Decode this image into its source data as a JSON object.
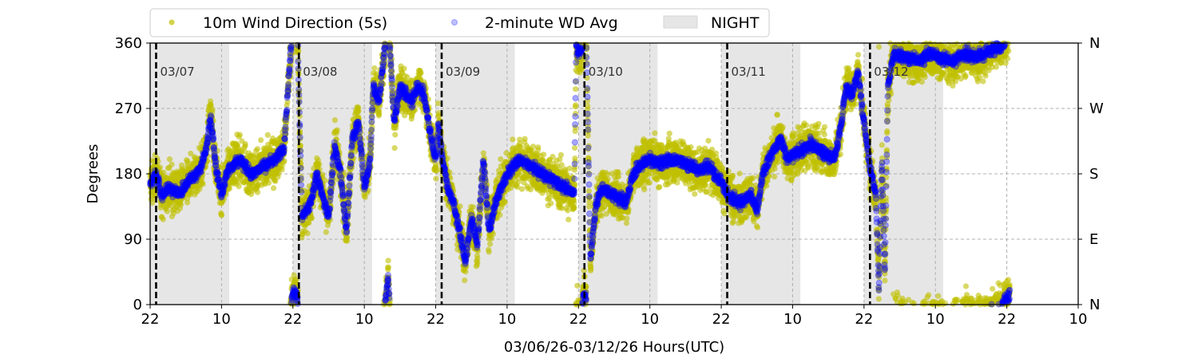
{
  "chart_data": {
    "type": "scatter",
    "xlabel": "03/06/26-03/12/26  Hours(UTC)",
    "ylabel": "Degrees",
    "xlim_hours": [
      0,
      156
    ],
    "ylim": [
      0,
      360
    ],
    "x_tick_hours": [
      0,
      12,
      24,
      36,
      48,
      60,
      72,
      84,
      96,
      108,
      120,
      132,
      144,
      156
    ],
    "x_tick_labels": [
      "22",
      "10",
      "22",
      "10",
      "22",
      "10",
      "22",
      "10",
      "22",
      "10",
      "22",
      "10",
      "22",
      "10"
    ],
    "y_ticks": [
      0,
      90,
      180,
      270,
      360
    ],
    "y_tick_labels": [
      "0",
      "90",
      "180",
      "270",
      "360"
    ],
    "y2_tick_labels": [
      "N",
      "E",
      "S",
      "W",
      "N"
    ],
    "grid": true,
    "legend": {
      "placement": "top",
      "entries": [
        {
          "label": "10m Wind Direction (5s)",
          "color": "#bfbf00",
          "kind": "marker"
        },
        {
          "label": "2-minute WD Avg",
          "color": "#0000ff",
          "kind": "marker-faint"
        },
        {
          "label": "NIGHT",
          "color": "#e6e6e6",
          "kind": "patch"
        }
      ]
    },
    "day_markers": [
      {
        "hour": 1,
        "label": "03/07"
      },
      {
        "hour": 25,
        "label": "03/08"
      },
      {
        "hour": 49,
        "label": "03/09"
      },
      {
        "hour": 73,
        "label": "03/10"
      },
      {
        "hour": 97,
        "label": "03/11"
      },
      {
        "hour": 121,
        "label": "03/12"
      }
    ],
    "night_periods_hours": [
      [
        0,
        13.3
      ],
      [
        24,
        37.3
      ],
      [
        48,
        61.3
      ],
      [
        72,
        85.3
      ],
      [
        96,
        109.3
      ],
      [
        120,
        133.3
      ]
    ],
    "series": [
      {
        "name": "2-minute WD Avg",
        "color": "#0000ff",
        "noise_deg": 8,
        "anchors_hour_deg": [
          [
            0,
            165
          ],
          [
            1,
            180
          ],
          [
            2,
            150
          ],
          [
            3,
            160
          ],
          [
            5,
            155
          ],
          [
            7,
            175
          ],
          [
            8.5,
            185
          ],
          [
            9.5,
            220
          ],
          [
            10.2,
            260
          ],
          [
            11,
            190
          ],
          [
            12,
            150
          ],
          [
            13,
            185
          ],
          [
            15,
            200
          ],
          [
            17,
            180
          ],
          [
            19,
            190
          ],
          [
            21,
            200
          ],
          [
            22.5,
            215
          ],
          [
            23.2,
            300
          ],
          [
            23.6,
            350
          ],
          [
            24,
            380
          ],
          [
            24.8,
            370
          ],
          [
            25.5,
            120
          ],
          [
            27,
            140
          ],
          [
            28,
            180
          ],
          [
            29,
            150
          ],
          [
            30,
            120
          ],
          [
            31,
            220
          ],
          [
            32,
            180
          ],
          [
            33,
            100
          ],
          [
            34,
            230
          ],
          [
            35,
            250
          ],
          [
            35.5,
            210
          ],
          [
            36,
            160
          ],
          [
            37,
            200
          ],
          [
            37.5,
            300
          ],
          [
            38.5,
            280
          ],
          [
            39,
            320
          ],
          [
            40,
            400
          ],
          [
            41,
            250
          ],
          [
            42,
            300
          ],
          [
            43,
            290
          ],
          [
            44,
            280
          ],
          [
            45,
            300
          ],
          [
            46,
            290
          ],
          [
            47,
            240
          ],
          [
            48,
            200
          ],
          [
            48.5,
            250
          ],
          [
            49,
            210
          ],
          [
            50,
            160
          ],
          [
            51,
            140
          ],
          [
            52,
            100
          ],
          [
            53,
            60
          ],
          [
            54,
            120
          ],
          [
            55,
            80
          ],
          [
            56,
            200
          ],
          [
            57,
            100
          ],
          [
            58,
            140
          ],
          [
            59,
            160
          ],
          [
            60,
            180
          ],
          [
            62,
            200
          ],
          [
            64,
            190
          ],
          [
            66,
            180
          ],
          [
            68,
            170
          ],
          [
            70,
            160
          ],
          [
            71.3,
            150
          ],
          [
            71.6,
            350
          ],
          [
            72.5,
            345
          ],
          [
            72.8,
            375
          ],
          [
            73.3,
            370
          ],
          [
            74,
            60
          ],
          [
            75,
            140
          ],
          [
            76,
            160
          ],
          [
            78,
            150
          ],
          [
            80,
            140
          ],
          [
            81,
            175
          ],
          [
            82,
            190
          ],
          [
            84,
            200
          ],
          [
            86,
            195
          ],
          [
            88,
            200
          ],
          [
            90,
            195
          ],
          [
            92,
            185
          ],
          [
            94,
            190
          ],
          [
            96,
            170
          ],
          [
            97,
            150
          ],
          [
            99,
            140
          ],
          [
            101,
            150
          ],
          [
            102,
            130
          ],
          [
            103,
            180
          ],
          [
            104,
            200
          ],
          [
            106,
            230
          ],
          [
            107,
            200
          ],
          [
            109,
            210
          ],
          [
            111,
            220
          ],
          [
            113,
            210
          ],
          [
            115,
            200
          ],
          [
            116,
            240
          ],
          [
            117,
            300
          ],
          [
            118,
            290
          ],
          [
            119,
            320
          ],
          [
            120,
            250
          ],
          [
            121,
            190
          ],
          [
            122,
            150
          ],
          [
            122.5,
            20
          ],
          [
            123,
            200
          ],
          [
            123.5,
            40
          ],
          [
            124,
            300
          ],
          [
            125,
            345
          ],
          [
            127,
            340
          ],
          [
            129,
            335
          ],
          [
            131,
            345
          ],
          [
            133,
            340
          ],
          [
            135,
            335
          ],
          [
            137,
            345
          ],
          [
            139,
            340
          ],
          [
            141,
            350
          ],
          [
            143,
            355
          ],
          [
            144.5,
            375
          ]
        ]
      },
      {
        "name": "10m Wind Direction (5s)",
        "color": "#bfbf00",
        "noise_deg": 28,
        "follows": "2-minute WD Avg"
      }
    ]
  }
}
